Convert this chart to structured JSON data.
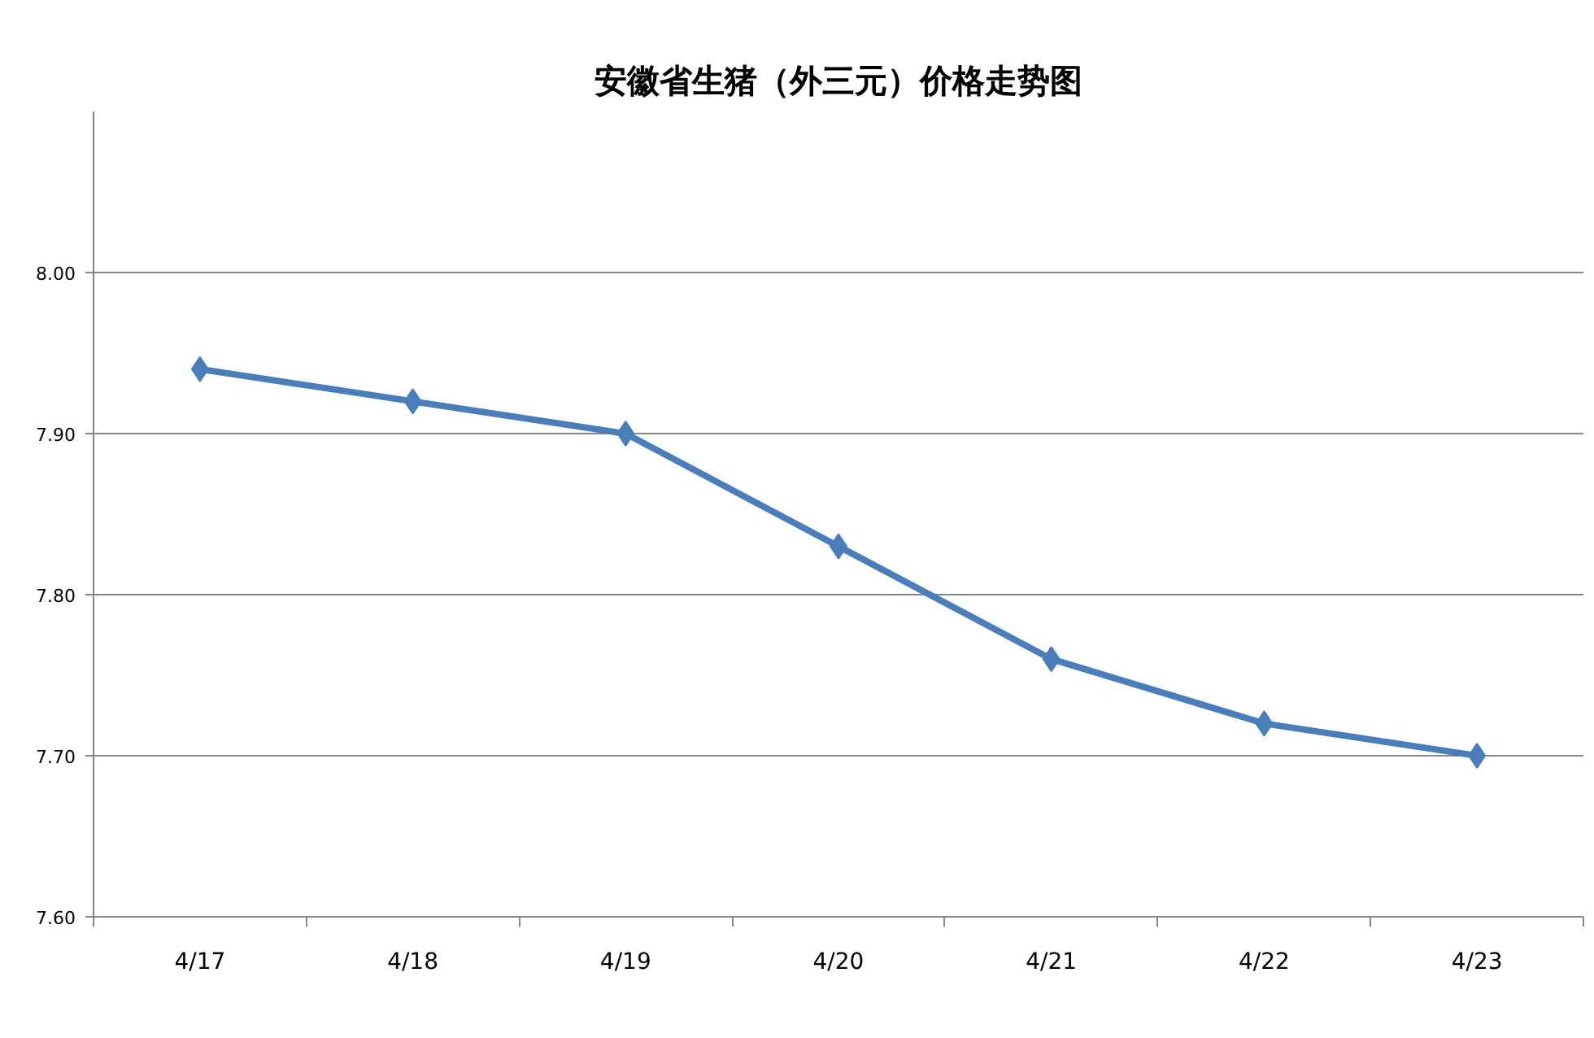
{
  "chart_data": {
    "type": "line",
    "title": "安徽省生猪（外三元）价格走势图",
    "categories": [
      "4/17",
      "4/18",
      "4/19",
      "4/20",
      "4/21",
      "4/22",
      "4/23"
    ],
    "series": [
      {
        "color": "#4a7ebb",
        "values": [
          7.94,
          7.92,
          7.9,
          7.83,
          7.76,
          7.72,
          7.7
        ]
      }
    ],
    "ylim": [
      7.6,
      8.1
    ],
    "yticks": [
      {
        "value": 7.6,
        "label": "7.60"
      },
      {
        "value": 7.7,
        "label": "7.70"
      },
      {
        "value": 7.8,
        "label": "7.80"
      },
      {
        "value": 7.9,
        "label": "7.90"
      },
      {
        "value": 8.0,
        "label": "8.00"
      }
    ],
    "grid": "y",
    "marker": "diamond",
    "line_style": "solid"
  }
}
